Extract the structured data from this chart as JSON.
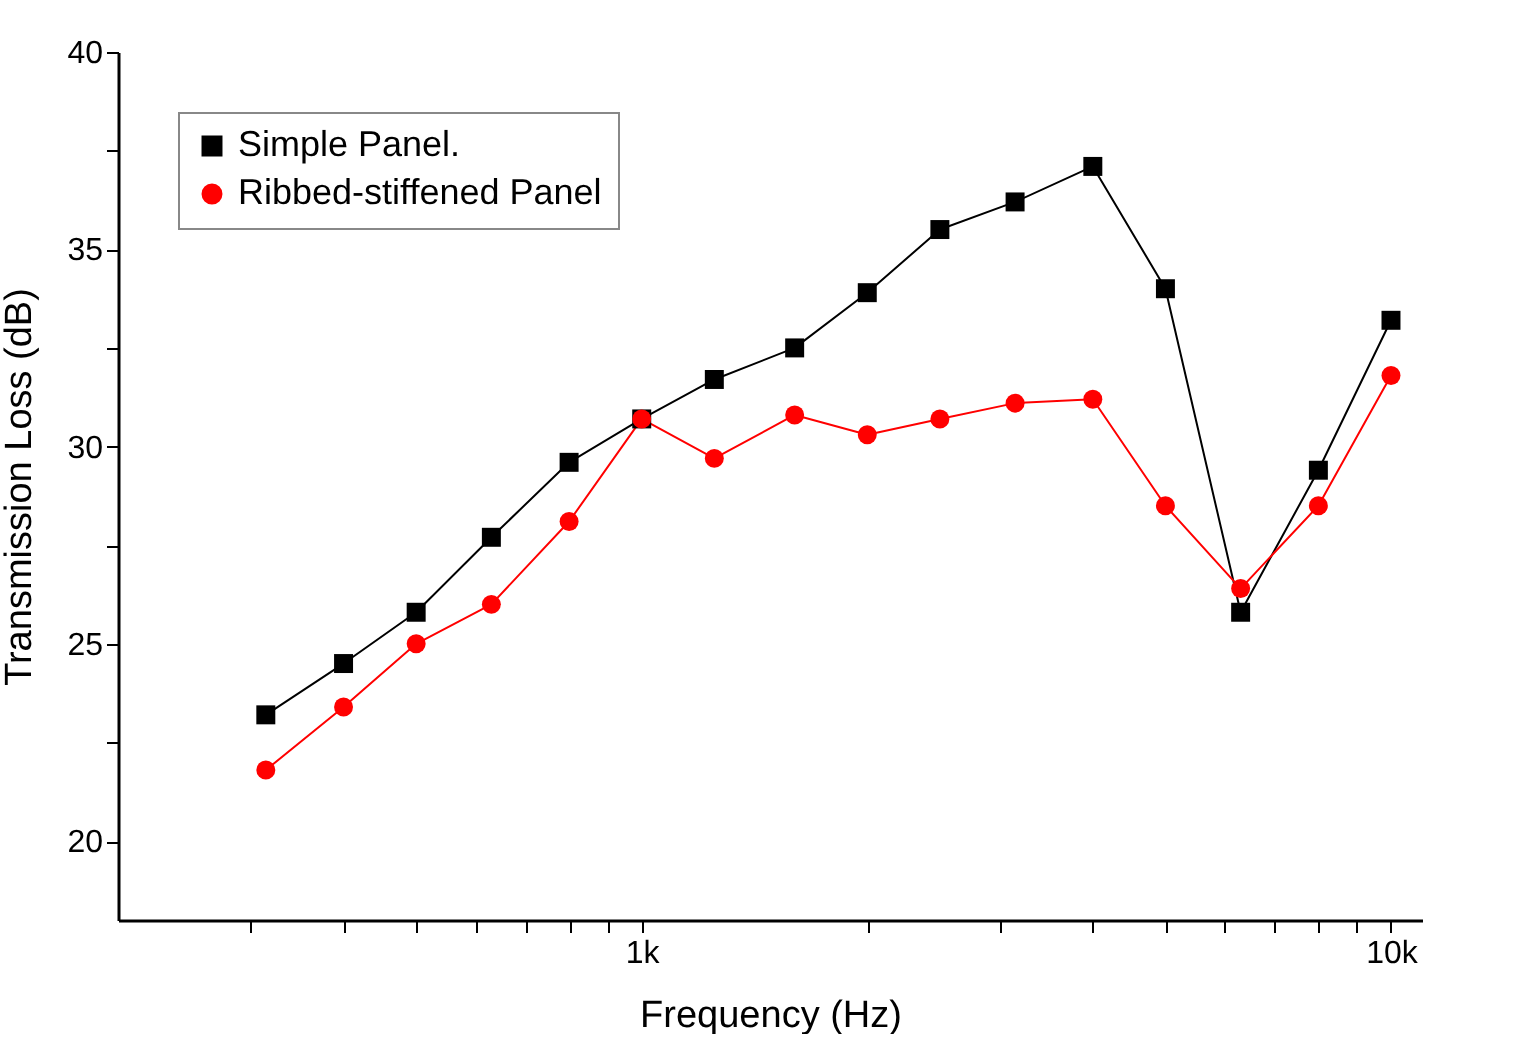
{
  "chart_data": {
    "type": "line",
    "xlabel": "Frequency (Hz)",
    "ylabel": "Transmission Loss (dB)",
    "log": "x",
    "x": [
      315,
      400,
      500,
      630,
      800,
      1000,
      1250,
      1600,
      2000,
      2500,
      3150,
      4000,
      5000,
      6300,
      8000,
      10000
    ],
    "series": [
      {
        "name": "Simple Panel.",
        "color": "#000000",
        "marker": "square",
        "values": [
          23.2,
          24.5,
          25.8,
          27.7,
          29.6,
          30.7,
          31.7,
          32.5,
          33.9,
          35.5,
          36.2,
          37.1,
          34.0,
          25.8,
          29.4,
          33.2
        ]
      },
      {
        "name": "Ribbed-stiffened Panel",
        "color": "#ff0000",
        "marker": "circle",
        "values": [
          21.8,
          23.4,
          25.0,
          26.0,
          28.1,
          30.7,
          29.7,
          30.8,
          30.3,
          30.7,
          31.1,
          31.2,
          28.5,
          26.4,
          28.5,
          31.8
        ]
      }
    ],
    "xlim": [
      200,
      11000
    ],
    "xticks": [
      {
        "value": 300,
        "label": null
      },
      {
        "value": 400,
        "label": null
      },
      {
        "value": 500,
        "label": null
      },
      {
        "value": 600,
        "label": null
      },
      {
        "value": 700,
        "label": null
      },
      {
        "value": 800,
        "label": null
      },
      {
        "value": 900,
        "label": null
      },
      {
        "value": 1000,
        "label": "1k"
      },
      {
        "value": 2000,
        "label": null
      },
      {
        "value": 3000,
        "label": null
      },
      {
        "value": 4000,
        "label": null
      },
      {
        "value": 5000,
        "label": null
      },
      {
        "value": 6000,
        "label": null
      },
      {
        "value": 7000,
        "label": null
      },
      {
        "value": 8000,
        "label": null
      },
      {
        "value": 9000,
        "label": null
      },
      {
        "value": 10000,
        "label": "10k"
      }
    ],
    "ylim": [
      18,
      40
    ],
    "yticks": [
      20,
      {
        "value": 22.5,
        "label": null
      },
      25,
      {
        "value": 27.5,
        "label": null
      },
      30,
      {
        "value": 32.5,
        "label": null
      },
      35,
      {
        "value": 37.5,
        "label": null
      },
      40
    ],
    "grid": false,
    "legend": "top left"
  }
}
